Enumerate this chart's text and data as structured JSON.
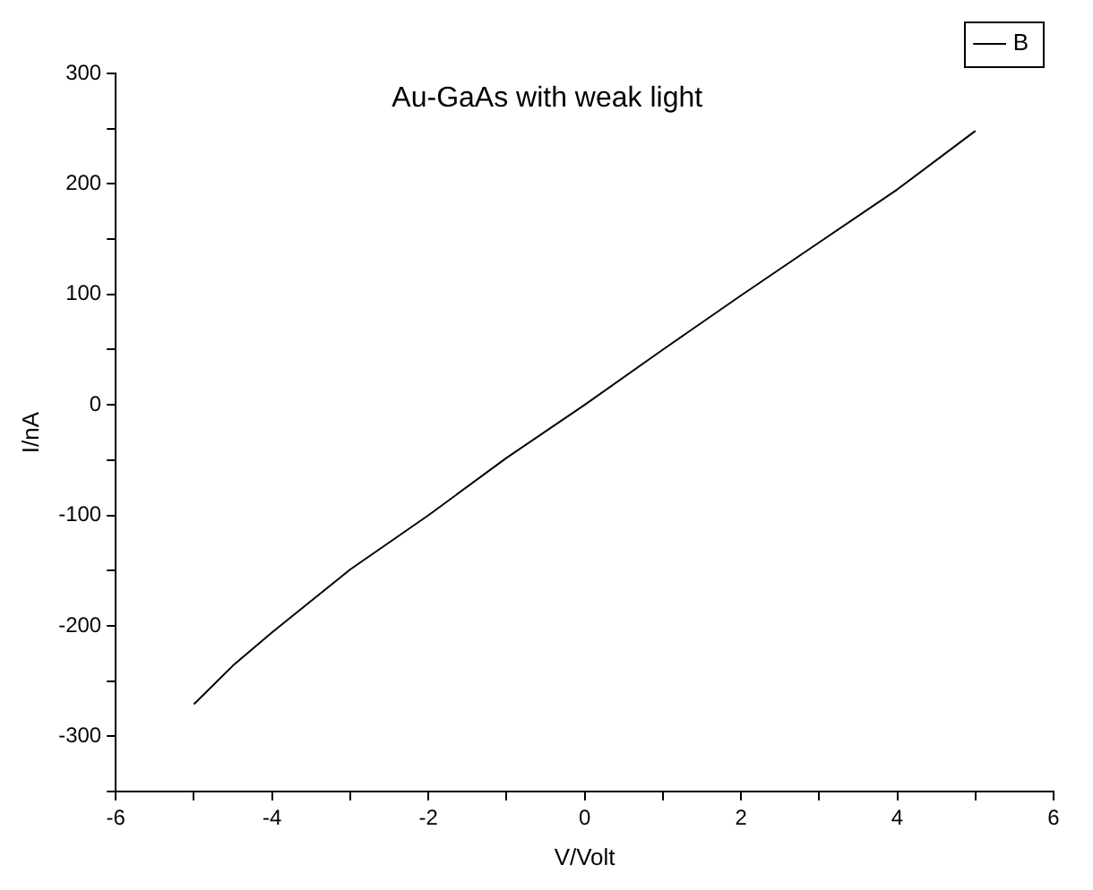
{
  "chart_data": {
    "type": "line",
    "title": "Au-GaAs with weak light",
    "xlabel": "V/Volt",
    "ylabel": "I/nA",
    "x": [
      -5,
      -4.5,
      -4,
      -3,
      -2,
      -1,
      0,
      1,
      2,
      3,
      4,
      5
    ],
    "series": [
      {
        "name": "B",
        "color": "#000000",
        "values": [
          -271,
          -236,
          -206,
          -149,
          -100,
          -48,
          0,
          50,
          99,
          147,
          195,
          248
        ]
      }
    ],
    "xlim": [
      -6,
      6
    ],
    "xticks": [
      -6,
      {
        "value": -5,
        "label": null
      },
      -4,
      {
        "value": -3,
        "label": null
      },
      -2,
      {
        "value": -1,
        "label": null
      },
      0,
      {
        "value": 1,
        "label": null
      },
      2,
      {
        "value": 3,
        "label": null
      },
      4,
      {
        "value": 5,
        "label": null
      },
      6
    ],
    "ylim": [
      -350,
      300
    ],
    "yticks": [
      {
        "value": -350,
        "label": null
      },
      -300,
      {
        "value": -250,
        "label": null
      },
      -200,
      {
        "value": -150,
        "label": null
      },
      -100,
      {
        "value": -50,
        "label": null
      },
      0,
      {
        "value": 50,
        "label": null
      },
      100,
      {
        "value": 150,
        "label": null
      },
      200,
      {
        "value": 250,
        "label": null
      },
      300
    ],
    "grid": false,
    "legend": "top right",
    "marker": "none",
    "line_style": "solid"
  }
}
